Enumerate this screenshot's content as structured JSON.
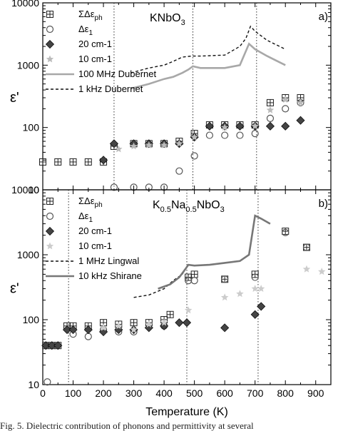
{
  "caption": "Fig. 5. Dielectric contribution of phonons and permittivity at several",
  "shared_axis": {
    "xlabel": "Temperature (K)",
    "xticks": [
      0,
      100,
      200,
      300,
      400,
      500,
      600,
      700,
      800,
      900
    ],
    "xlim": [
      0,
      950
    ]
  },
  "chart_data": [
    {
      "type": "scatter",
      "panel_label": "a)",
      "material": "KNbO",
      "material_sub": "3",
      "ylabel": "ε'",
      "yscale": "log",
      "ylim": [
        10,
        10000
      ],
      "yticks": [
        10,
        100,
        1000,
        10000
      ],
      "xticks_labeled": false,
      "phase_transitions": [
        235,
        495,
        705
      ],
      "legend": {
        "placement": "top-left"
      },
      "series": [
        {
          "name": "ΣΔε_ph",
          "marker": "boxplus",
          "color": "#222222",
          "x": [
            0,
            50,
            100,
            150,
            200,
            235,
            300,
            350,
            400,
            450,
            500,
            550,
            600,
            650,
            700,
            750,
            800,
            850
          ],
          "y": [
            28,
            28,
            28,
            28,
            28,
            50,
            55,
            55,
            55,
            60,
            80,
            110,
            110,
            110,
            110,
            250,
            300,
            300
          ]
        },
        {
          "name": "Δε_1",
          "marker": "circle",
          "color": "#555555",
          "x": [
            235,
            300,
            350,
            400,
            450,
            500,
            550,
            600,
            650,
            700,
            750,
            800,
            850
          ],
          "y": [
            11,
            11,
            11,
            11,
            20,
            35,
            75,
            75,
            75,
            80,
            140,
            200,
            250
          ]
        },
        {
          "name": "20 cm-1",
          "marker": "diamond",
          "color": "#444444",
          "x": [
            200,
            235,
            300,
            350,
            400,
            450,
            500,
            550,
            600,
            650,
            700,
            750,
            800,
            850
          ],
          "y": [
            30,
            55,
            55,
            55,
            55,
            55,
            70,
            105,
            105,
            105,
            105,
            105,
            105,
            130
          ]
        },
        {
          "name": "10 cm-1",
          "marker": "star",
          "color": "#bbbbbb",
          "x": [
            250,
            300,
            350,
            400,
            450,
            500,
            600,
            700,
            750,
            800,
            850
          ],
          "y": [
            45,
            50,
            52,
            52,
            55,
            70,
            100,
            105,
            190,
            280,
            250
          ]
        },
        {
          "name": "100 MHz Dubernet",
          "line": "solid",
          "color": "#a8a8a8",
          "x": [
            290,
            350,
            400,
            430,
            460,
            480,
            495,
            520,
            600,
            650,
            680,
            700,
            740,
            800
          ],
          "y": [
            420,
            500,
            600,
            650,
            750,
            850,
            960,
            900,
            900,
            1000,
            2200,
            1800,
            1400,
            1000
          ]
        },
        {
          "name": "1 kHz  Dubernet",
          "line": "dashed",
          "color": "#111111",
          "x": [
            290,
            350,
            400,
            430,
            460,
            490,
            520,
            600,
            650,
            670,
            685,
            700,
            740,
            800
          ],
          "y": [
            750,
            900,
            1000,
            1150,
            1350,
            1400,
            1400,
            1450,
            2000,
            2700,
            4200,
            3500,
            2500,
            1800
          ]
        }
      ]
    },
    {
      "type": "scatter",
      "panel_label": "b)",
      "material": "K0.5Na0.5NbO3",
      "material_parts": [
        "K",
        "0.5",
        "Na",
        "0.5",
        "NbO",
        "3"
      ],
      "ylabel": "ε'",
      "yscale": "log",
      "ylim": [
        10,
        10000
      ],
      "yticks": [
        10,
        100,
        1000,
        10000
      ],
      "xticks_labeled": true,
      "phase_transitions": [
        85,
        475,
        710
      ],
      "legend": {
        "placement": "top-left"
      },
      "series": [
        {
          "name": "ΣΔε_ph",
          "marker": "boxplus",
          "color": "#222222",
          "x": [
            10,
            30,
            50,
            80,
            100,
            150,
            200,
            250,
            300,
            350,
            400,
            420,
            480,
            500,
            600,
            700,
            800,
            870
          ],
          "y": [
            40,
            40,
            40,
            80,
            80,
            80,
            90,
            85,
            90,
            90,
            100,
            120,
            450,
            500,
            420,
            500,
            2300,
            1300
          ]
        },
        {
          "name": "Δε_1",
          "marker": "circle",
          "color": "#555555",
          "x": [
            15,
            100,
            150,
            200,
            250,
            300,
            400,
            480,
            500,
            600,
            700,
            800,
            870
          ],
          "y": [
            11,
            60,
            55,
            70,
            65,
            65,
            80,
            400,
            400,
            420,
            450,
            2200,
            1300
          ]
        },
        {
          "name": "20 cm-1",
          "marker": "diamond",
          "color": "#444444",
          "x": [
            10,
            30,
            50,
            80,
            100,
            150,
            200,
            250,
            300,
            350,
            400,
            450,
            475,
            600,
            700,
            720
          ],
          "y": [
            40,
            40,
            40,
            70,
            70,
            70,
            65,
            70,
            70,
            75,
            80,
            90,
            90,
            75,
            120,
            160
          ]
        },
        {
          "name": "10 cm-1",
          "marker": "star",
          "color": "#cccccc",
          "x": [
            200,
            250,
            300,
            350,
            400,
            480,
            600,
            650,
            700,
            720,
            870,
            920
          ],
          "y": [
            75,
            80,
            70,
            85,
            90,
            140,
            220,
            250,
            300,
            300,
            600,
            550
          ]
        },
        {
          "name": "1 MHz Lingwal",
          "line": "dashed",
          "color": "#111111",
          "x": [
            300,
            350,
            400,
            430,
            460,
            475
          ],
          "y": [
            220,
            240,
            300,
            400,
            500,
            650
          ]
        },
        {
          "name": "10 kHz Shirane",
          "line": "solid",
          "color": "#777777",
          "x": [
            380,
            420,
            450,
            470,
            480,
            500,
            550,
            600,
            650,
            680,
            700,
            720,
            750
          ],
          "y": [
            300,
            350,
            450,
            600,
            700,
            680,
            700,
            750,
            800,
            1000,
            4000,
            3600,
            3000
          ]
        }
      ]
    }
  ]
}
